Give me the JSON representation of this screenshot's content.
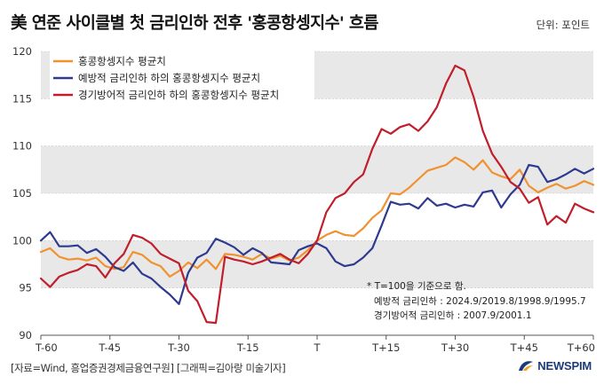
{
  "title": "美 연준 사이클별 첫 금리인하 전후 '홍콩항셍지수' 흐름",
  "unit": "단위: 포인트",
  "footer": "[자료=Wind, 흥업증권경제금융연구원] [그래픽=김아랑 미술기자]",
  "logo_text": "NEWSPIM",
  "colors": {
    "orange": "#f0922f",
    "blue": "#2e3a8f",
    "red": "#c01e2b",
    "band": "#e8e8e8",
    "grid": "#c8c8c8"
  },
  "annotation": {
    "line1": "* T=100을 기준으로 함.",
    "line2": "예방적 금리인하 : 2024.9/2019.8/1998.9/1995.7",
    "line3": "경기방어적 금리인하 : 2007.9/2001.1"
  },
  "chart_data": {
    "type": "line",
    "ylim": [
      90,
      120
    ],
    "xlim": [
      -60,
      60
    ],
    "yticks": [
      "90",
      "95",
      "100",
      "105",
      "110",
      "115",
      "120"
    ],
    "xticks": [
      {
        "pos": -60,
        "label": "T-60"
      },
      {
        "pos": -45,
        "label": "T-45"
      },
      {
        "pos": -30,
        "label": "T-30"
      },
      {
        "pos": -15,
        "label": "T-15"
      },
      {
        "pos": 0,
        "label": "T"
      },
      {
        "pos": 15,
        "label": "T+15"
      },
      {
        "pos": 30,
        "label": "T+30"
      },
      {
        "pos": 45,
        "label": "T+45"
      },
      {
        "pos": 60,
        "label": "T+60"
      }
    ],
    "legend_position": "top-left",
    "series": [
      {
        "name": "홍콩항셍지수 평균치",
        "color": "#f0922f",
        "points": [
          [
            -60,
            98.8
          ],
          [
            -58,
            99.2
          ],
          [
            -56,
            98.3
          ],
          [
            -54,
            98.0
          ],
          [
            -52,
            98.1
          ],
          [
            -50,
            97.9
          ],
          [
            -48,
            98.2
          ],
          [
            -46,
            97.3
          ],
          [
            -44,
            97.0
          ],
          [
            -42,
            97.2
          ],
          [
            -40,
            98.8
          ],
          [
            -38,
            98.5
          ],
          [
            -36,
            97.7
          ],
          [
            -34,
            97.3
          ],
          [
            -32,
            96.2
          ],
          [
            -30,
            96.8
          ],
          [
            -28,
            97.7
          ],
          [
            -26,
            97.1
          ],
          [
            -24,
            98.0
          ],
          [
            -22,
            97.0
          ],
          [
            -20,
            98.6
          ],
          [
            -18,
            98.5
          ],
          [
            -16,
            98.3
          ],
          [
            -14,
            98.0
          ],
          [
            -12,
            98.6
          ],
          [
            -10,
            98.1
          ],
          [
            -8,
            98.4
          ],
          [
            -6,
            97.9
          ],
          [
            -4,
            98.2
          ],
          [
            -2,
            99.0
          ],
          [
            0,
            100.0
          ],
          [
            2,
            100.6
          ],
          [
            4,
            101.0
          ],
          [
            6,
            100.6
          ],
          [
            8,
            100.5
          ],
          [
            10,
            101.3
          ],
          [
            12,
            102.4
          ],
          [
            14,
            103.2
          ],
          [
            16,
            105.0
          ],
          [
            18,
            104.9
          ],
          [
            20,
            105.6
          ],
          [
            22,
            106.5
          ],
          [
            24,
            107.4
          ],
          [
            26,
            107.7
          ],
          [
            28,
            108.0
          ],
          [
            30,
            108.8
          ],
          [
            32,
            108.3
          ],
          [
            34,
            107.5
          ],
          [
            36,
            108.5
          ],
          [
            38,
            107.2
          ],
          [
            40,
            106.8
          ],
          [
            42,
            106.5
          ],
          [
            44,
            107.5
          ],
          [
            46,
            105.8
          ],
          [
            48,
            105.1
          ],
          [
            50,
            105.6
          ],
          [
            52,
            106.0
          ],
          [
            54,
            105.5
          ],
          [
            56,
            105.8
          ],
          [
            58,
            106.3
          ],
          [
            60,
            105.9
          ]
        ]
      },
      {
        "name": "예방적 금리인하 하의 홍콩항셍지수 평균치",
        "color": "#2e3a8f",
        "points": [
          [
            -60,
            100.0
          ],
          [
            -58,
            100.9
          ],
          [
            -56,
            99.4
          ],
          [
            -54,
            99.4
          ],
          [
            -52,
            99.5
          ],
          [
            -50,
            98.7
          ],
          [
            -48,
            99.1
          ],
          [
            -46,
            98.3
          ],
          [
            -44,
            97.2
          ],
          [
            -42,
            96.8
          ],
          [
            -40,
            97.7
          ],
          [
            -38,
            96.5
          ],
          [
            -36,
            96.0
          ],
          [
            -34,
            95.1
          ],
          [
            -32,
            94.3
          ],
          [
            -30,
            93.3
          ],
          [
            -28,
            96.6
          ],
          [
            -26,
            98.2
          ],
          [
            -24,
            98.7
          ],
          [
            -22,
            100.2
          ],
          [
            -20,
            99.8
          ],
          [
            -18,
            99.3
          ],
          [
            -16,
            98.5
          ],
          [
            -14,
            99.2
          ],
          [
            -12,
            98.7
          ],
          [
            -10,
            97.7
          ],
          [
            -8,
            97.6
          ],
          [
            -6,
            97.5
          ],
          [
            -4,
            99.0
          ],
          [
            -2,
            99.4
          ],
          [
            0,
            99.7
          ],
          [
            2,
            99.2
          ],
          [
            4,
            97.8
          ],
          [
            6,
            97.3
          ],
          [
            8,
            97.5
          ],
          [
            10,
            98.2
          ],
          [
            12,
            99.2
          ],
          [
            14,
            101.6
          ],
          [
            16,
            104.1
          ],
          [
            18,
            103.8
          ],
          [
            20,
            103.9
          ],
          [
            22,
            103.4
          ],
          [
            24,
            104.5
          ],
          [
            26,
            103.7
          ],
          [
            28,
            103.9
          ],
          [
            30,
            103.5
          ],
          [
            32,
            103.8
          ],
          [
            34,
            103.6
          ],
          [
            36,
            105.1
          ],
          [
            38,
            105.3
          ],
          [
            40,
            103.5
          ],
          [
            42,
            104.9
          ],
          [
            44,
            105.9
          ],
          [
            46,
            108.0
          ],
          [
            48,
            107.8
          ],
          [
            50,
            106.2
          ],
          [
            52,
            106.5
          ],
          [
            54,
            107.0
          ],
          [
            56,
            107.6
          ],
          [
            58,
            107.1
          ],
          [
            60,
            107.6
          ]
        ]
      },
      {
        "name": "경기방어적 금리인하 하의 홍콩항셍지수 평균치",
        "color": "#c01e2b",
        "points": [
          [
            -60,
            96.0
          ],
          [
            -58,
            95.1
          ],
          [
            -56,
            96.2
          ],
          [
            -54,
            96.6
          ],
          [
            -52,
            96.9
          ],
          [
            -50,
            97.5
          ],
          [
            -48,
            97.3
          ],
          [
            -46,
            96.1
          ],
          [
            -44,
            97.6
          ],
          [
            -42,
            98.6
          ],
          [
            -40,
            100.6
          ],
          [
            -38,
            100.3
          ],
          [
            -36,
            99.7
          ],
          [
            -34,
            98.6
          ],
          [
            -32,
            98.1
          ],
          [
            -30,
            97.6
          ],
          [
            -28,
            94.7
          ],
          [
            -26,
            93.6
          ],
          [
            -24,
            91.4
          ],
          [
            -22,
            91.3
          ],
          [
            -20,
            98.3
          ],
          [
            -18,
            98.0
          ],
          [
            -16,
            97.8
          ],
          [
            -14,
            97.5
          ],
          [
            -12,
            97.8
          ],
          [
            -10,
            98.2
          ],
          [
            -8,
            98.6
          ],
          [
            -6,
            98.0
          ],
          [
            -4,
            97.6
          ],
          [
            -2,
            98.6
          ],
          [
            0,
            100.0
          ],
          [
            2,
            103.0
          ],
          [
            4,
            104.5
          ],
          [
            6,
            105.0
          ],
          [
            8,
            106.2
          ],
          [
            10,
            107.0
          ],
          [
            12,
            109.7
          ],
          [
            14,
            111.8
          ],
          [
            16,
            111.3
          ],
          [
            18,
            112.0
          ],
          [
            20,
            112.3
          ],
          [
            22,
            111.6
          ],
          [
            24,
            112.6
          ],
          [
            26,
            114.1
          ],
          [
            28,
            116.6
          ],
          [
            30,
            118.5
          ],
          [
            32,
            118.0
          ],
          [
            34,
            115.2
          ],
          [
            36,
            111.6
          ],
          [
            38,
            109.2
          ],
          [
            40,
            107.8
          ],
          [
            42,
            106.2
          ],
          [
            44,
            105.5
          ],
          [
            46,
            104.0
          ],
          [
            48,
            104.6
          ],
          [
            50,
            101.7
          ],
          [
            52,
            102.6
          ],
          [
            54,
            101.9
          ],
          [
            56,
            103.9
          ],
          [
            58,
            103.4
          ],
          [
            60,
            103.0
          ]
        ]
      }
    ]
  }
}
